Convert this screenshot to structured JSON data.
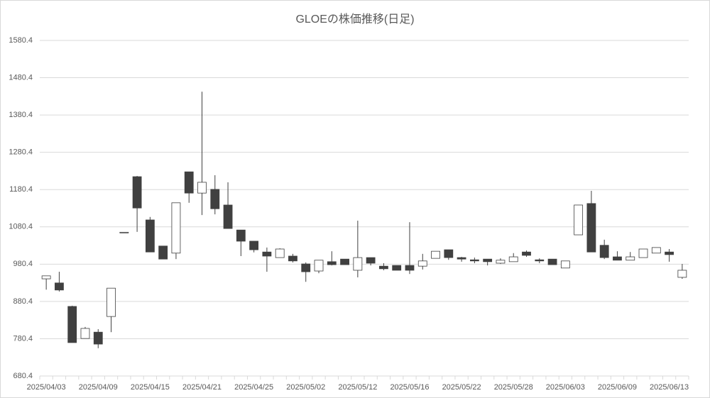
{
  "chart_data": {
    "type": "candlestick",
    "title": "GLOEの株価推移(日足)",
    "categories": [
      "2025/04/03",
      null,
      null,
      null,
      "2025/04/09",
      null,
      null,
      null,
      "2025/04/15",
      null,
      null,
      null,
      "2025/04/21",
      null,
      null,
      null,
      "2025/04/25",
      null,
      null,
      null,
      "2025/05/02",
      null,
      null,
      null,
      "2025/05/12",
      null,
      null,
      null,
      "2025/05/16",
      null,
      null,
      null,
      "2025/05/22",
      null,
      null,
      null,
      "2025/05/28",
      null,
      null,
      null,
      "2025/06/03",
      null,
      null,
      null,
      "2025/06/09",
      null,
      null,
      null,
      "2025/06/13",
      null
    ],
    "open": [
      941,
      930,
      867,
      781,
      798,
      840,
      1066,
      1215,
      1099,
      1029,
      1010,
      1228,
      1171,
      1181,
      1139,
      1072,
      1042,
      1013,
      998,
      1002,
      981,
      962,
      987,
      994,
      964,
      998,
      975,
      977,
      977,
      975,
      996,
      1019,
      998,
      992,
      994,
      983,
      987,
      1013,
      992,
      994,
      970,
      1059,
      1143,
      1031,
      1000,
      991,
      998,
      1010,
      1013,
      945
    ],
    "high": [
      949,
      960,
      869,
      812,
      806,
      916,
      1066,
      1217,
      1107,
      1029,
      1145,
      1228,
      1443,
      1219,
      1200,
      1072,
      1042,
      1025,
      1023,
      1008,
      985,
      991,
      1015,
      994,
      1097,
      998,
      983,
      977,
      1093,
      1008,
      1015,
      1019,
      1000,
      998,
      994,
      996,
      1010,
      1017,
      996,
      994,
      989,
      1139,
      1177,
      1046,
      1015,
      1013,
      1021,
      1025,
      1021,
      981
    ],
    "low": [
      912,
      907,
      770,
      781,
      755,
      798,
      1066,
      1067,
      1013,
      994,
      994,
      1145,
      1112,
      1114,
      1076,
      1002,
      1012,
      960,
      998,
      985,
      933,
      956,
      977,
      979,
      945,
      977,
      964,
      964,
      954,
      966,
      996,
      992,
      987,
      983,
      977,
      981,
      987,
      1000,
      983,
      979,
      970,
      1059,
      1013,
      994,
      991,
      991,
      998,
      1010,
      987,
      941
    ],
    "close": [
      949,
      911,
      770,
      808,
      766,
      916,
      1066,
      1131,
      1013,
      994,
      1145,
      1171,
      1200,
      1129,
      1076,
      1042,
      1019,
      1002,
      1021,
      989,
      960,
      991,
      979,
      979,
      998,
      983,
      968,
      964,
      964,
      989,
      1015,
      998,
      994,
      989,
      987,
      991,
      1000,
      1004,
      989,
      979,
      989,
      1139,
      1013,
      998,
      991,
      1000,
      1021,
      1025,
      1006,
      964
    ],
    "up_color": "#ffffff",
    "down_color": "#404040",
    "line_color": "#404040",
    "ylim": [
      680.4,
      1580.4
    ],
    "yticks": [
      680.4,
      780.4,
      880.4,
      980.4,
      1080.4,
      1180.4,
      1280.4,
      1380.4,
      1480.4,
      1580.4
    ],
    "grid": true
  }
}
